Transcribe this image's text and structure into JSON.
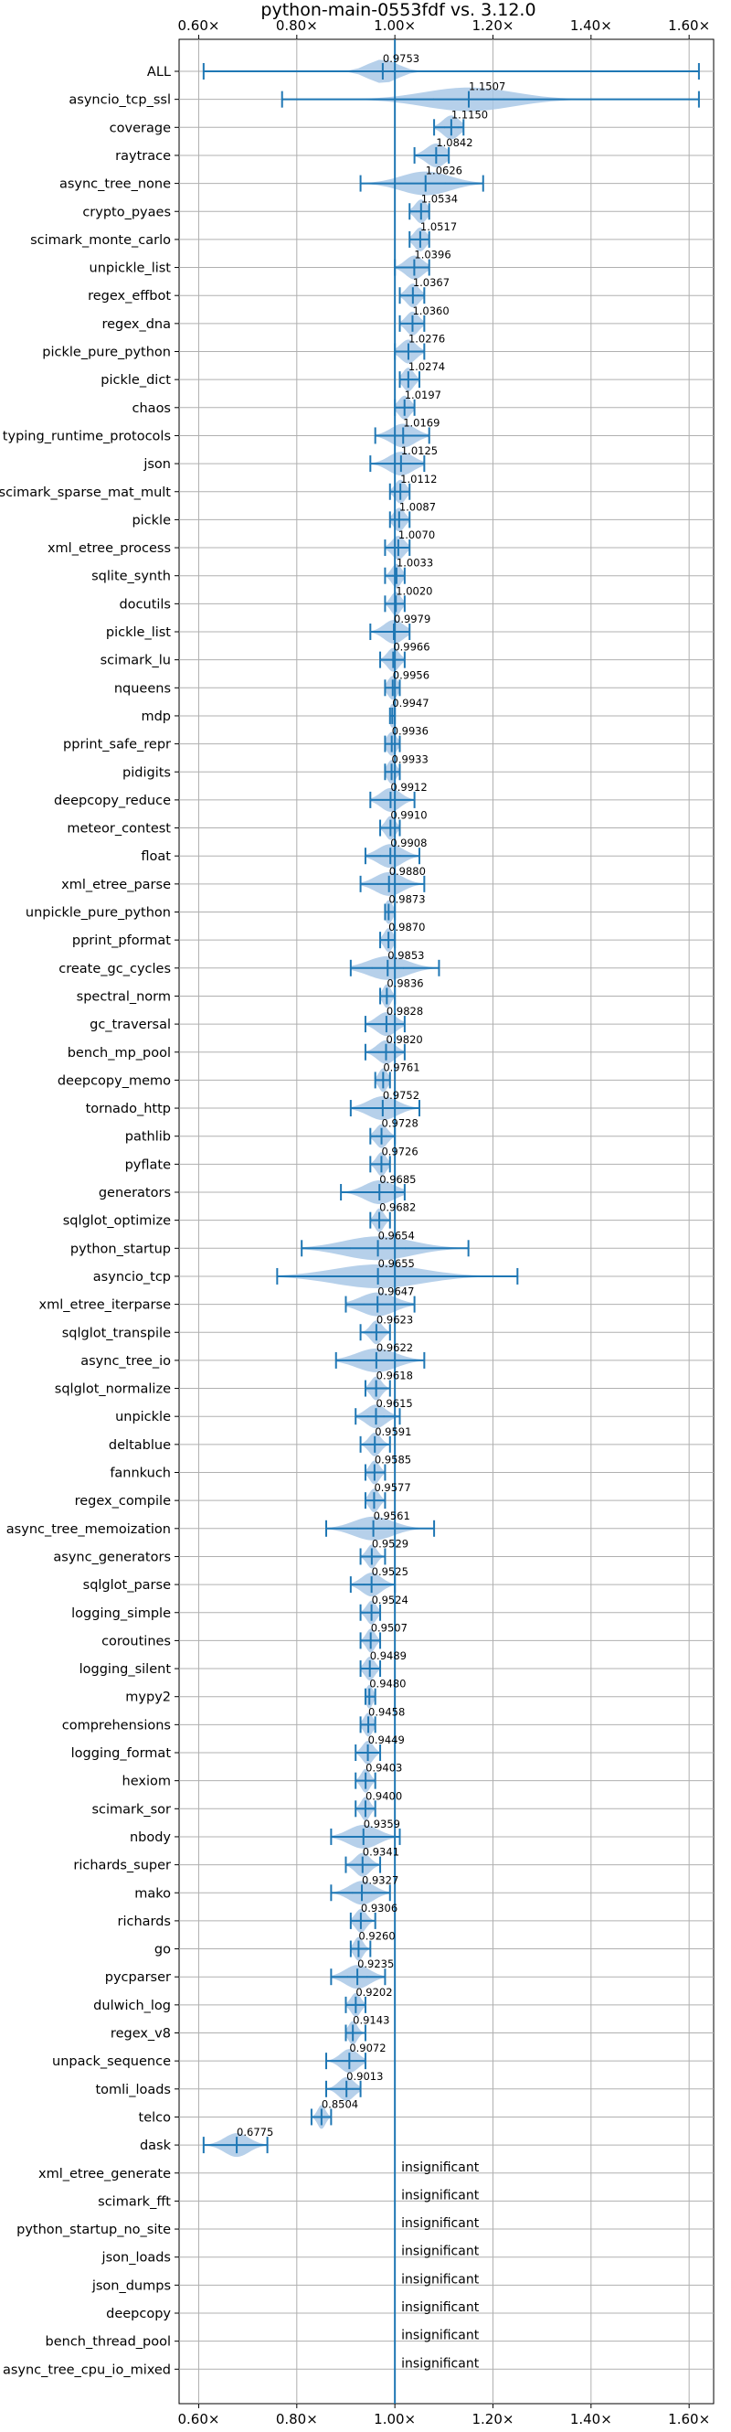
{
  "chart_data": {
    "type": "violin",
    "title": "python-main-0553fdf vs. 3.12.0",
    "x_ticks": [
      "0.60×",
      "0.80×",
      "1.00×",
      "1.20×",
      "1.40×",
      "1.60×"
    ],
    "xlim": [
      0.56,
      1.65
    ],
    "reference_line": 1.0,
    "grid": true,
    "colors": {
      "violin": "#a9c8e6",
      "line": "#1f77b4",
      "grid": "#b0b0b0"
    },
    "insignificant_label": "insignificant",
    "benchmarks": [
      {
        "name": "ALL",
        "median": 0.9753,
        "min": 0.61,
        "max": 1.62,
        "spread": 0.03,
        "label": "0.9753"
      },
      {
        "name": "asyncio_tcp_ssl",
        "median": 1.1507,
        "min": 0.77,
        "max": 1.62,
        "spread": 0.09,
        "label": "1.1507"
      },
      {
        "name": "coverage",
        "median": 1.115,
        "min": 1.08,
        "max": 1.14,
        "spread": 0.017,
        "label": "1.1150"
      },
      {
        "name": "raytrace",
        "median": 1.0842,
        "min": 1.04,
        "max": 1.11,
        "spread": 0.02,
        "label": "1.0842"
      },
      {
        "name": "async_tree_none",
        "median": 1.0626,
        "min": 0.93,
        "max": 1.18,
        "spread": 0.05,
        "label": "1.0626"
      },
      {
        "name": "crypto_pyaes",
        "median": 1.0534,
        "min": 1.03,
        "max": 1.07,
        "spread": 0.012,
        "label": "1.0534"
      },
      {
        "name": "scimark_monte_carlo",
        "median": 1.0517,
        "min": 1.03,
        "max": 1.07,
        "spread": 0.012,
        "label": "1.0517"
      },
      {
        "name": "unpickle_list",
        "median": 1.0396,
        "min": 1.0,
        "max": 1.07,
        "spread": 0.018,
        "label": "1.0396"
      },
      {
        "name": "regex_effbot",
        "median": 1.0367,
        "min": 1.01,
        "max": 1.06,
        "spread": 0.013,
        "label": "1.0367"
      },
      {
        "name": "regex_dna",
        "median": 1.036,
        "min": 1.01,
        "max": 1.06,
        "spread": 0.013,
        "label": "1.0360"
      },
      {
        "name": "pickle_pure_python",
        "median": 1.0276,
        "min": 1.0,
        "max": 1.06,
        "spread": 0.016,
        "label": "1.0276"
      },
      {
        "name": "pickle_dict",
        "median": 1.0274,
        "min": 1.01,
        "max": 1.05,
        "spread": 0.011,
        "label": "1.0274"
      },
      {
        "name": "chaos",
        "median": 1.0197,
        "min": 1.0,
        "max": 1.04,
        "spread": 0.012,
        "label": "1.0197"
      },
      {
        "name": "typing_runtime_protocols",
        "median": 1.0169,
        "min": 0.96,
        "max": 1.07,
        "spread": 0.025,
        "label": "1.0169"
      },
      {
        "name": "json",
        "median": 1.0125,
        "min": 0.95,
        "max": 1.06,
        "spread": 0.025,
        "label": "1.0125"
      },
      {
        "name": "scimark_sparse_mat_mult",
        "median": 1.0112,
        "min": 0.99,
        "max": 1.03,
        "spread": 0.011,
        "label": "1.0112"
      },
      {
        "name": "pickle",
        "median": 1.0087,
        "min": 0.99,
        "max": 1.03,
        "spread": 0.011,
        "label": "1.0087"
      },
      {
        "name": "xml_etree_process",
        "median": 1.007,
        "min": 0.98,
        "max": 1.03,
        "spread": 0.013,
        "label": "1.0070"
      },
      {
        "name": "sqlite_synth",
        "median": 1.0033,
        "min": 0.98,
        "max": 1.02,
        "spread": 0.01,
        "label": "1.0033"
      },
      {
        "name": "docutils",
        "median": 1.002,
        "min": 0.98,
        "max": 1.02,
        "spread": 0.01,
        "label": "1.0020"
      },
      {
        "name": "pickle_list",
        "median": 0.9979,
        "min": 0.95,
        "max": 1.03,
        "spread": 0.02,
        "label": "0.9979"
      },
      {
        "name": "scimark_lu",
        "median": 0.9966,
        "min": 0.97,
        "max": 1.02,
        "spread": 0.012,
        "label": "0.9966"
      },
      {
        "name": "nqueens",
        "median": 0.9956,
        "min": 0.98,
        "max": 1.01,
        "spread": 0.01,
        "label": "0.9956"
      },
      {
        "name": "mdp",
        "median": 0.9947,
        "min": 0.99,
        "max": 1.0,
        "spread": 0.006,
        "label": "0.9947"
      },
      {
        "name": "pprint_safe_repr",
        "median": 0.9936,
        "min": 0.98,
        "max": 1.01,
        "spread": 0.01,
        "label": "0.9936"
      },
      {
        "name": "pidigits",
        "median": 0.9933,
        "min": 0.98,
        "max": 1.01,
        "spread": 0.009,
        "label": "0.9933"
      },
      {
        "name": "deepcopy_reduce",
        "median": 0.9912,
        "min": 0.95,
        "max": 1.04,
        "spread": 0.02,
        "label": "0.9912"
      },
      {
        "name": "meteor_contest",
        "median": 0.991,
        "min": 0.97,
        "max": 1.01,
        "spread": 0.01,
        "label": "0.9910"
      },
      {
        "name": "float",
        "median": 0.9908,
        "min": 0.94,
        "max": 1.05,
        "spread": 0.025,
        "label": "0.9908"
      },
      {
        "name": "xml_etree_parse",
        "median": 0.988,
        "min": 0.93,
        "max": 1.06,
        "spread": 0.028,
        "label": "0.9880"
      },
      {
        "name": "unpickle_pure_python",
        "median": 0.9873,
        "min": 0.98,
        "max": 1.0,
        "spread": 0.008,
        "label": "0.9873"
      },
      {
        "name": "pprint_pformat",
        "median": 0.987,
        "min": 0.97,
        "max": 1.0,
        "spread": 0.009,
        "label": "0.9870"
      },
      {
        "name": "create_gc_cycles",
        "median": 0.9853,
        "min": 0.91,
        "max": 1.09,
        "spread": 0.04,
        "label": "0.9853"
      },
      {
        "name": "spectral_norm",
        "median": 0.9836,
        "min": 0.97,
        "max": 1.0,
        "spread": 0.008,
        "label": "0.9836"
      },
      {
        "name": "gc_traversal",
        "median": 0.9828,
        "min": 0.94,
        "max": 1.02,
        "spread": 0.02,
        "label": "0.9828"
      },
      {
        "name": "bench_mp_pool",
        "median": 0.982,
        "min": 0.94,
        "max": 1.02,
        "spread": 0.018,
        "label": "0.9820"
      },
      {
        "name": "deepcopy_memo",
        "median": 0.9761,
        "min": 0.96,
        "max": 0.99,
        "spread": 0.009,
        "label": "0.9761"
      },
      {
        "name": "tornado_http",
        "median": 0.9752,
        "min": 0.91,
        "max": 1.05,
        "spread": 0.03,
        "label": "0.9752"
      },
      {
        "name": "pathlib",
        "median": 0.9728,
        "min": 0.95,
        "max": 1.0,
        "spread": 0.012,
        "label": "0.9728"
      },
      {
        "name": "pyflate",
        "median": 0.9726,
        "min": 0.95,
        "max": 0.99,
        "spread": 0.01,
        "label": "0.9726"
      },
      {
        "name": "generators",
        "median": 0.9685,
        "min": 0.89,
        "max": 1.02,
        "spread": 0.03,
        "label": "0.9685"
      },
      {
        "name": "sqlglot_optimize",
        "median": 0.9682,
        "min": 0.95,
        "max": 0.99,
        "spread": 0.009,
        "label": "0.9682"
      },
      {
        "name": "python_startup",
        "median": 0.9654,
        "min": 0.81,
        "max": 1.15,
        "spread": 0.07,
        "label": "0.9654"
      },
      {
        "name": "asyncio_tcp",
        "median": 0.9655,
        "min": 0.76,
        "max": 1.25,
        "spread": 0.09,
        "label": "0.9655"
      },
      {
        "name": "xml_etree_iterparse",
        "median": 0.9647,
        "min": 0.9,
        "max": 1.04,
        "spread": 0.035,
        "label": "0.9647"
      },
      {
        "name": "sqlglot_transpile",
        "median": 0.9623,
        "min": 0.93,
        "max": 0.99,
        "spread": 0.012,
        "label": "0.9623"
      },
      {
        "name": "async_tree_io",
        "median": 0.9622,
        "min": 0.88,
        "max": 1.06,
        "spread": 0.04,
        "label": "0.9622"
      },
      {
        "name": "sqlglot_normalize",
        "median": 0.9618,
        "min": 0.94,
        "max": 0.99,
        "spread": 0.011,
        "label": "0.9618"
      },
      {
        "name": "unpickle",
        "median": 0.9615,
        "min": 0.92,
        "max": 1.01,
        "spread": 0.02,
        "label": "0.9615"
      },
      {
        "name": "deltablue",
        "median": 0.9591,
        "min": 0.93,
        "max": 0.99,
        "spread": 0.012,
        "label": "0.9591"
      },
      {
        "name": "fannkuch",
        "median": 0.9585,
        "min": 0.94,
        "max": 0.98,
        "spread": 0.01,
        "label": "0.9585"
      },
      {
        "name": "regex_compile",
        "median": 0.9577,
        "min": 0.94,
        "max": 0.98,
        "spread": 0.01,
        "label": "0.9577"
      },
      {
        "name": "async_tree_memoization",
        "median": 0.9561,
        "min": 0.86,
        "max": 1.08,
        "spread": 0.04,
        "label": "0.9561"
      },
      {
        "name": "async_generators",
        "median": 0.9529,
        "min": 0.93,
        "max": 0.98,
        "spread": 0.01,
        "label": "0.9529"
      },
      {
        "name": "sqlglot_parse",
        "median": 0.9525,
        "min": 0.91,
        "max": 1.0,
        "spread": 0.02,
        "label": "0.9525"
      },
      {
        "name": "logging_simple",
        "median": 0.9524,
        "min": 0.93,
        "max": 0.97,
        "spread": 0.01,
        "label": "0.9524"
      },
      {
        "name": "coroutines",
        "median": 0.9507,
        "min": 0.93,
        "max": 0.97,
        "spread": 0.009,
        "label": "0.9507"
      },
      {
        "name": "logging_silent",
        "median": 0.9489,
        "min": 0.93,
        "max": 0.97,
        "spread": 0.01,
        "label": "0.9489"
      },
      {
        "name": "mypy2",
        "median": 0.948,
        "min": 0.94,
        "max": 0.96,
        "spread": 0.007,
        "label": "0.9480"
      },
      {
        "name": "comprehensions",
        "median": 0.9458,
        "min": 0.93,
        "max": 0.96,
        "spread": 0.009,
        "label": "0.9458"
      },
      {
        "name": "logging_format",
        "median": 0.9449,
        "min": 0.92,
        "max": 0.97,
        "spread": 0.011,
        "label": "0.9449"
      },
      {
        "name": "hexiom",
        "median": 0.9403,
        "min": 0.92,
        "max": 0.96,
        "spread": 0.009,
        "label": "0.9403"
      },
      {
        "name": "scimark_sor",
        "median": 0.94,
        "min": 0.92,
        "max": 0.96,
        "spread": 0.009,
        "label": "0.9400"
      },
      {
        "name": "nbody",
        "median": 0.9359,
        "min": 0.87,
        "max": 1.01,
        "spread": 0.03,
        "label": "0.9359"
      },
      {
        "name": "richards_super",
        "median": 0.9341,
        "min": 0.9,
        "max": 0.97,
        "spread": 0.015,
        "label": "0.9341"
      },
      {
        "name": "mako",
        "median": 0.9327,
        "min": 0.87,
        "max": 0.99,
        "spread": 0.025,
        "label": "0.9327"
      },
      {
        "name": "richards",
        "median": 0.9306,
        "min": 0.91,
        "max": 0.96,
        "spread": 0.011,
        "label": "0.9306"
      },
      {
        "name": "go",
        "median": 0.926,
        "min": 0.91,
        "max": 0.95,
        "spread": 0.009,
        "label": "0.9260"
      },
      {
        "name": "pycparser",
        "median": 0.9235,
        "min": 0.87,
        "max": 0.98,
        "spread": 0.025,
        "label": "0.9235"
      },
      {
        "name": "dulwich_log",
        "median": 0.9202,
        "min": 0.9,
        "max": 0.94,
        "spread": 0.01,
        "label": "0.9202"
      },
      {
        "name": "regex_v8",
        "median": 0.9143,
        "min": 0.9,
        "max": 0.94,
        "spread": 0.009,
        "label": "0.9143"
      },
      {
        "name": "unpack_sequence",
        "median": 0.9072,
        "min": 0.86,
        "max": 0.94,
        "spread": 0.018,
        "label": "0.9072"
      },
      {
        "name": "tomli_loads",
        "median": 0.9013,
        "min": 0.86,
        "max": 0.93,
        "spread": 0.016,
        "label": "0.9013"
      },
      {
        "name": "telco",
        "median": 0.8504,
        "min": 0.83,
        "max": 0.87,
        "spread": 0.008,
        "label": "0.8504"
      },
      {
        "name": "dask",
        "median": 0.6775,
        "min": 0.61,
        "max": 0.74,
        "spread": 0.025,
        "label": "0.6775"
      },
      {
        "name": "xml_etree_generate",
        "insignificant": true
      },
      {
        "name": "scimark_fft",
        "insignificant": true
      },
      {
        "name": "python_startup_no_site",
        "insignificant": true
      },
      {
        "name": "json_loads",
        "insignificant": true
      },
      {
        "name": "json_dumps",
        "insignificant": true
      },
      {
        "name": "deepcopy",
        "insignificant": true
      },
      {
        "name": "bench_thread_pool",
        "insignificant": true
      },
      {
        "name": "async_tree_cpu_io_mixed",
        "insignificant": true
      }
    ]
  }
}
